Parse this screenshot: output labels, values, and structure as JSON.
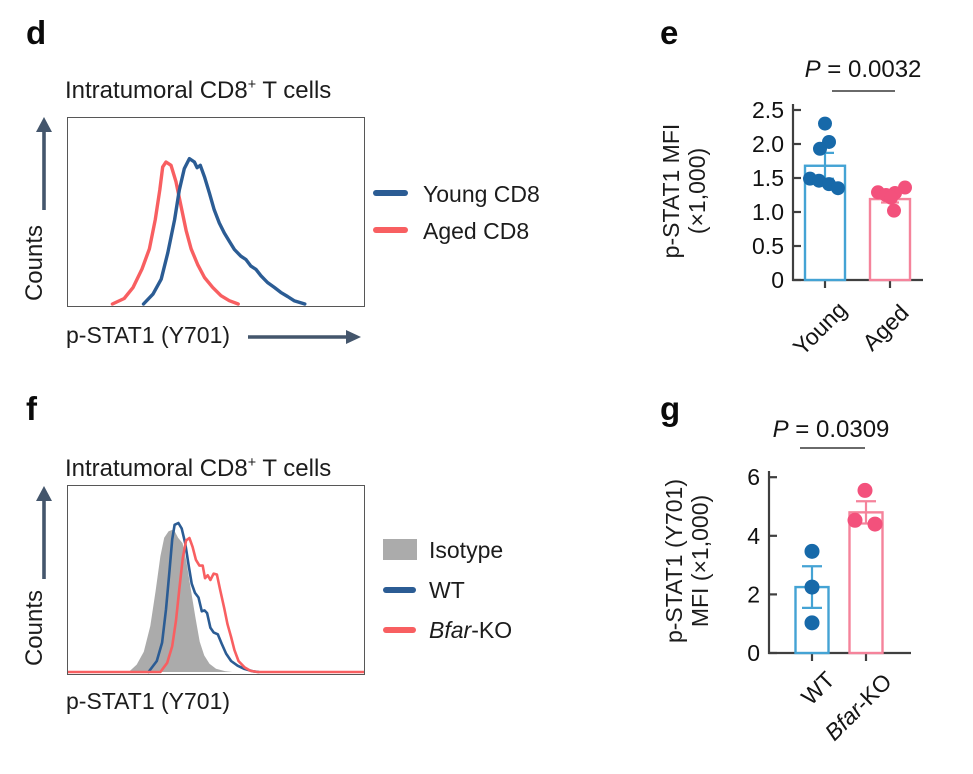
{
  "colors": {
    "slate": "#44566C",
    "axis": "#3F3F3F",
    "sig": "#6A6A6A",
    "flow_blue": "#2B5C94",
    "flow_red": "#F85F61",
    "isotype_gray": "#ABABAB",
    "bar_blue_outline": "#44A3D4",
    "bar_blue_dot": "#1769A9",
    "bar_pink_outline": "#F5839B",
    "bar_pink_dot": "#F3517C"
  },
  "panels": {
    "d": {
      "label": "d",
      "title": {
        "pre": "Intratumoral CD8",
        "sup": "+",
        "post": " T cells"
      },
      "ylabel": "Counts",
      "xlabel": "p-STAT1 (Y701)",
      "legend": [
        {
          "label": "Young CD8",
          "color": "#2B5C94"
        },
        {
          "label": "Aged CD8",
          "color": "#F85F61"
        }
      ]
    },
    "e": {
      "label": "e",
      "p_value": {
        "italic": "P",
        "rest": " = 0.0032"
      }
    },
    "f": {
      "label": "f",
      "title": {
        "pre": "Intratumoral CD8",
        "sup": "+",
        "post": " T cells"
      },
      "ylabel": "Counts",
      "xlabel": "p-STAT1 (Y701)",
      "legend": [
        {
          "label": "Isotype",
          "label_italic": "",
          "color": "#ABABAB"
        },
        {
          "label": "WT",
          "label_italic": "",
          "color": "#2B5C94"
        },
        {
          "label": "-KO",
          "label_italic": "Bfar",
          "color": "#F85F61"
        }
      ]
    },
    "g": {
      "label": "g",
      "p_value": {
        "italic": "P",
        "rest": " = 0.0309"
      }
    }
  },
  "chart_data": [
    {
      "id": "d",
      "type": "flow_histogram",
      "title": "Intratumoral CD8+ T cells",
      "xlabel": "p-STAT1 (Y701)",
      "ylabel": "Counts",
      "series": [
        {
          "name": "Aged CD8",
          "color": "#F85F61",
          "style": "line",
          "points": [
            [
              0.15,
              0
            ],
            [
              0.19,
              0.03
            ],
            [
              0.22,
              0.09
            ],
            [
              0.25,
              0.19
            ],
            [
              0.275,
              0.3
            ],
            [
              0.295,
              0.46
            ],
            [
              0.31,
              0.62
            ],
            [
              0.32,
              0.745
            ],
            [
              0.331,
              0.772
            ],
            [
              0.348,
              0.754
            ],
            [
              0.365,
              0.664
            ],
            [
              0.382,
              0.53
            ],
            [
              0.399,
              0.4
            ],
            [
              0.416,
              0.3
            ],
            [
              0.438,
              0.215
            ],
            [
              0.461,
              0.144
            ],
            [
              0.489,
              0.09
            ],
            [
              0.517,
              0.045
            ],
            [
              0.545,
              0.018
            ],
            [
              0.575,
              0
            ]
          ]
        },
        {
          "name": "Young CD8",
          "color": "#2B5C94",
          "style": "line",
          "points": [
            [
              0.255,
              0
            ],
            [
              0.287,
              0.054
            ],
            [
              0.315,
              0.135
            ],
            [
              0.337,
              0.278
            ],
            [
              0.36,
              0.458
            ],
            [
              0.376,
              0.619
            ],
            [
              0.393,
              0.736
            ],
            [
              0.41,
              0.79
            ],
            [
              0.427,
              0.772
            ],
            [
              0.436,
              0.741
            ],
            [
              0.447,
              0.754
            ],
            [
              0.461,
              0.691
            ],
            [
              0.478,
              0.601
            ],
            [
              0.494,
              0.512
            ],
            [
              0.511,
              0.44
            ],
            [
              0.528,
              0.386
            ],
            [
              0.545,
              0.341
            ],
            [
              0.562,
              0.296
            ],
            [
              0.584,
              0.26
            ],
            [
              0.601,
              0.242
            ],
            [
              0.618,
              0.206
            ],
            [
              0.635,
              0.188
            ],
            [
              0.652,
              0.153
            ],
            [
              0.674,
              0.117
            ],
            [
              0.697,
              0.09
            ],
            [
              0.719,
              0.063
            ],
            [
              0.742,
              0.041
            ],
            [
              0.764,
              0.018
            ],
            [
              0.8,
              0
            ]
          ]
        }
      ]
    },
    {
      "id": "e",
      "type": "bar_scatter",
      "p_value": "P = 0.0032",
      "ylabel": "p-STAT1 MFI (×1,000)",
      "ylabel_lines": [
        "p-STAT1 MFI",
        "(×1,000)"
      ],
      "ylim": [
        0,
        2.5
      ],
      "yticks": [
        "0",
        "0.5",
        "1.0",
        "1.5",
        "2.0",
        "2.5"
      ],
      "ytick_values": [
        0,
        0.5,
        1.0,
        1.5,
        2.0,
        2.5
      ],
      "groups": [
        {
          "label": "Young",
          "label_italic": "",
          "mean": 1.68,
          "sem": 0.19,
          "bar_color": "#44A3D4",
          "dot_color": "#1769A9",
          "dots": [
            [
              2.3,
              0
            ],
            [
              2.03,
              4
            ],
            [
              1.93,
              -5
            ],
            [
              1.49,
              -15
            ],
            [
              1.46,
              -6
            ],
            [
              1.41,
              4
            ],
            [
              1.35,
              13
            ]
          ]
        },
        {
          "label": "Aged",
          "label_italic": "",
          "mean": 1.19,
          "sem": 0.05,
          "bar_color": "#F5839B",
          "dot_color": "#F3517C",
          "dots": [
            [
              1.36,
              15
            ],
            [
              1.29,
              -12
            ],
            [
              1.28,
              5
            ],
            [
              1.25,
              -4
            ],
            [
              1.21,
              1
            ],
            [
              1.02,
              4
            ]
          ]
        }
      ]
    },
    {
      "id": "f",
      "type": "flow_histogram",
      "title": "Intratumoral CD8+ T cells",
      "xlabel": "p-STAT1 (Y701)",
      "ylabel": "Counts",
      "series": [
        {
          "name": "Isotype",
          "color": "#ABABAB",
          "style": "fill",
          "points": [
            [
              0.205,
              0
            ],
            [
              0.232,
              0.04
            ],
            [
              0.256,
              0.11
            ],
            [
              0.278,
              0.25
            ],
            [
              0.296,
              0.44
            ],
            [
              0.312,
              0.63
            ],
            [
              0.325,
              0.73
            ],
            [
              0.34,
              0.765
            ],
            [
              0.357,
              0.775
            ],
            [
              0.372,
              0.73
            ],
            [
              0.387,
              0.7
            ],
            [
              0.4,
              0.6
            ],
            [
              0.415,
              0.45
            ],
            [
              0.43,
              0.3
            ],
            [
              0.445,
              0.165
            ],
            [
              0.46,
              0.09
            ],
            [
              0.478,
              0.045
            ],
            [
              0.5,
              0.018
            ],
            [
              0.53,
              0.005
            ],
            [
              0.555,
              0
            ]
          ]
        },
        {
          "name": "WT",
          "color": "#2B5C94",
          "style": "line",
          "points": [
            [
              0.272,
              0
            ],
            [
              0.3,
              0.06
            ],
            [
              0.318,
              0.16
            ],
            [
              0.331,
              0.34
            ],
            [
              0.343,
              0.55
            ],
            [
              0.352,
              0.72
            ],
            [
              0.36,
              0.8
            ],
            [
              0.373,
              0.81
            ],
            [
              0.384,
              0.78
            ],
            [
              0.396,
              0.7
            ],
            [
              0.407,
              0.585
            ],
            [
              0.418,
              0.48
            ],
            [
              0.429,
              0.43
            ],
            [
              0.441,
              0.405
            ],
            [
              0.452,
              0.33
            ],
            [
              0.461,
              0.335
            ],
            [
              0.47,
              0.32
            ],
            [
              0.481,
              0.24
            ],
            [
              0.492,
              0.215
            ],
            [
              0.506,
              0.205
            ],
            [
              0.519,
              0.155
            ],
            [
              0.534,
              0.1
            ],
            [
              0.551,
              0.06
            ],
            [
              0.573,
              0.034
            ],
            [
              0.596,
              0.017
            ],
            [
              0.624,
              0.004
            ],
            [
              0.645,
              0
            ]
          ]
        },
        {
          "name": "Bfar-KO",
          "color": "#F85F61",
          "style": "line",
          "baseline_full_width": true,
          "points": [
            [
              0.312,
              0
            ],
            [
              0.335,
              0.05
            ],
            [
              0.352,
              0.14
            ],
            [
              0.365,
              0.28
            ],
            [
              0.376,
              0.45
            ],
            [
              0.388,
              0.62
            ],
            [
              0.399,
              0.715
            ],
            [
              0.41,
              0.728
            ],
            [
              0.421,
              0.68
            ],
            [
              0.432,
              0.61
            ],
            [
              0.444,
              0.578
            ],
            [
              0.455,
              0.578
            ],
            [
              0.463,
              0.51
            ],
            [
              0.472,
              0.526
            ],
            [
              0.481,
              0.5
            ],
            [
              0.492,
              0.534
            ],
            [
              0.503,
              0.53
            ],
            [
              0.514,
              0.448
            ],
            [
              0.528,
              0.345
            ],
            [
              0.539,
              0.26
            ],
            [
              0.551,
              0.19
            ],
            [
              0.562,
              0.12
            ],
            [
              0.576,
              0.06
            ],
            [
              0.596,
              0.026
            ],
            [
              0.617,
              0.006
            ],
            [
              0.64,
              0
            ]
          ]
        }
      ]
    },
    {
      "id": "g",
      "type": "bar_scatter",
      "p_value": "P = 0.0309",
      "ylabel": "p-STAT1 (Y701) MFI (×1,000)",
      "ylabel_lines": [
        "p-STAT1 (Y701)",
        "MFI (×1,000)"
      ],
      "ylim": [
        0,
        6
      ],
      "yticks": [
        "0",
        "2",
        "4",
        "6"
      ],
      "ytick_values": [
        0,
        2,
        4,
        6
      ],
      "groups": [
        {
          "label": "WT",
          "label_italic": "",
          "mean": 2.25,
          "sem": 0.71,
          "bar_color": "#44A3D4",
          "dot_color": "#1769A9",
          "dots": [
            [
              3.47,
              0
            ],
            [
              2.25,
              0
            ],
            [
              1.03,
              0
            ]
          ]
        },
        {
          "label": "-KO",
          "label_italic": "Bfar",
          "mean": 4.8,
          "sem": 0.38,
          "bar_color": "#F5839B",
          "dot_color": "#F3517C",
          "dots": [
            [
              5.55,
              -1
            ],
            [
              4.53,
              -11
            ],
            [
              4.4,
              9
            ]
          ]
        }
      ]
    }
  ]
}
